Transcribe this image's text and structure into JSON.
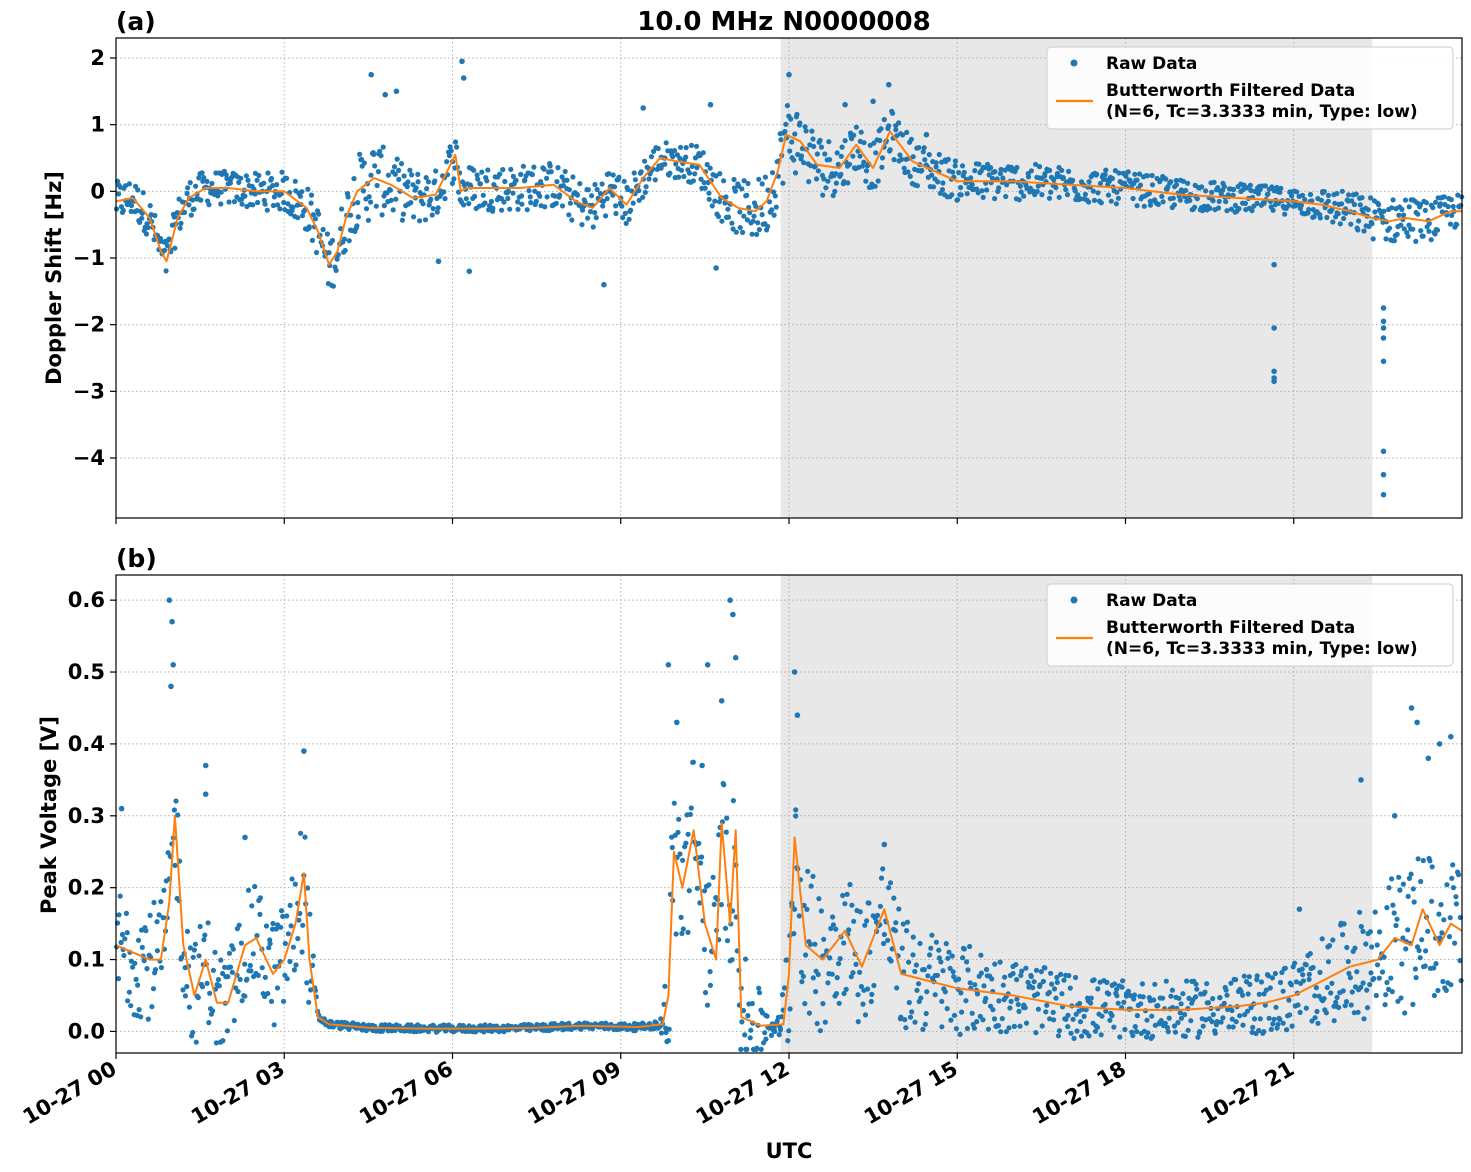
{
  "figure": {
    "title": "10.0 MHz N0000008",
    "xlabel": "UTC",
    "x_tick_labels": [
      "10-27 00",
      "10-27 03",
      "10-27 06",
      "10-27 09",
      "10-27 12",
      "10-27 15",
      "10-27 18",
      "10-27 21"
    ],
    "colors": {
      "raw": "#1f77b4",
      "filtered": "#ff7f0e",
      "shade": "#e8e8e8",
      "grid": "#b0b0b0"
    }
  },
  "chart_data": [
    {
      "type": "scatter",
      "panel_label": "(a)",
      "ylabel": "Doppler Shift [Hz]",
      "xlim_hours": [
        0,
        24
      ],
      "ylim": [
        -4.9,
        2.3
      ],
      "y_ticks": [
        2,
        1,
        0,
        -1,
        -2,
        -3,
        -4
      ],
      "y_tick_labels": [
        "2",
        "1",
        "0",
        "−1",
        "−2",
        "−3",
        "−4"
      ],
      "shaded_range_hours": [
        11.85,
        22.4
      ],
      "grid": true,
      "legend_placement": "upper right",
      "legend": {
        "raw_label": "Raw Data",
        "filtered_line1": "Butterworth Filtered Data",
        "filtered_line2": "(N=6, Tc=3.3333 min, Type: low)"
      },
      "series": [
        {
          "name": "Butterworth Filtered Data",
          "style": "line",
          "x_hours": [
            0,
            0.3,
            0.6,
            0.8,
            0.9,
            1.1,
            1.3,
            1.6,
            2.0,
            2.5,
            3.0,
            3.4,
            3.6,
            3.8,
            3.95,
            4.1,
            4.3,
            4.6,
            4.9,
            5.3,
            5.7,
            6.05,
            6.15,
            6.25,
            6.6,
            7.2,
            7.8,
            8.2,
            8.5,
            8.8,
            9.1,
            9.4,
            9.7,
            10.0,
            10.4,
            10.8,
            11.1,
            11.4,
            11.6,
            11.8,
            11.95,
            12.2,
            12.5,
            12.9,
            13.2,
            13.5,
            13.8,
            14.2,
            15.0,
            16.0,
            17.0,
            18.0,
            19.0,
            20.0,
            21.0,
            21.5,
            22.0,
            22.4,
            22.7,
            23.0,
            23.4,
            23.8,
            24.0
          ],
          "y": [
            -0.15,
            -0.1,
            -0.4,
            -0.9,
            -1.05,
            -0.4,
            -0.1,
            0.05,
            0.05,
            0.0,
            0.0,
            -0.25,
            -0.6,
            -1.1,
            -0.9,
            -0.4,
            0.0,
            0.2,
            0.1,
            -0.1,
            -0.05,
            0.55,
            0.0,
            0.05,
            0.05,
            0.05,
            0.1,
            -0.15,
            -0.25,
            0.05,
            -0.2,
            0.2,
            0.5,
            0.45,
            0.4,
            -0.1,
            -0.25,
            -0.3,
            -0.15,
            0.3,
            0.85,
            0.75,
            0.4,
            0.35,
            0.7,
            0.35,
            0.9,
            0.45,
            0.15,
            0.15,
            0.1,
            0.05,
            -0.05,
            -0.1,
            -0.15,
            -0.2,
            -0.3,
            -0.4,
            -0.45,
            -0.4,
            -0.45,
            -0.3,
            -0.3
          ]
        },
        {
          "name": "Raw Data",
          "style": "points",
          "noise_band_x_hours": [
            0,
            1,
            2,
            3,
            4,
            4.5,
            5,
            6,
            7,
            8,
            9,
            10,
            11,
            12,
            13,
            14,
            15,
            18,
            21,
            22,
            23,
            24
          ],
          "noise_band_halfwidth": [
            0.3,
            0.3,
            0.25,
            0.3,
            0.45,
            0.6,
            0.45,
            0.35,
            0.35,
            0.35,
            0.35,
            0.25,
            0.4,
            0.55,
            0.4,
            0.35,
            0.3,
            0.25,
            0.2,
            0.3,
            0.35,
            0.25
          ],
          "spikes": [
            {
              "x_hours": 4.55,
              "y": 1.75
            },
            {
              "x_hours": 4.8,
              "y": 1.45
            },
            {
              "x_hours": 5.0,
              "y": 1.5
            },
            {
              "x_hours": 6.17,
              "y": 1.95
            },
            {
              "x_hours": 6.2,
              "y": 1.7
            },
            {
              "x_hours": 6.3,
              "y": -1.2
            },
            {
              "x_hours": 5.75,
              "y": -1.05
            },
            {
              "x_hours": 8.7,
              "y": -1.4
            },
            {
              "x_hours": 9.4,
              "y": 1.25
            },
            {
              "x_hours": 10.6,
              "y": 1.3
            },
            {
              "x_hours": 10.7,
              "y": -1.15
            },
            {
              "x_hours": 12.0,
              "y": 1.75
            },
            {
              "x_hours": 13.0,
              "y": 1.3
            },
            {
              "x_hours": 13.5,
              "y": 1.35
            },
            {
              "x_hours": 13.78,
              "y": 1.6
            },
            {
              "x_hours": 14.45,
              "y": 0.85
            },
            {
              "x_hours": 20.65,
              "y": -1.1
            },
            {
              "x_hours": 20.65,
              "y": -2.05
            },
            {
              "x_hours": 20.65,
              "y": -2.7
            },
            {
              "x_hours": 20.65,
              "y": -2.8
            },
            {
              "x_hours": 20.65,
              "y": -2.85
            },
            {
              "x_hours": 22.6,
              "y": -1.75
            },
            {
              "x_hours": 22.6,
              "y": -1.95
            },
            {
              "x_hours": 22.6,
              "y": -2.05
            },
            {
              "x_hours": 22.6,
              "y": -2.2
            },
            {
              "x_hours": 22.6,
              "y": -2.55
            },
            {
              "x_hours": 22.6,
              "y": -3.9
            },
            {
              "x_hours": 22.6,
              "y": -4.25
            },
            {
              "x_hours": 22.6,
              "y": -4.55
            }
          ]
        }
      ]
    },
    {
      "type": "scatter",
      "panel_label": "(b)",
      "ylabel": "Peak Voltage [V]",
      "xlim_hours": [
        0,
        24
      ],
      "ylim": [
        -0.03,
        0.635
      ],
      "y_ticks": [
        0.6,
        0.5,
        0.4,
        0.3,
        0.2,
        0.1,
        0.0
      ],
      "y_tick_labels": [
        "0.6",
        "0.5",
        "0.4",
        "0.3",
        "0.2",
        "0.1",
        "0.0"
      ],
      "shaded_range_hours": [
        11.85,
        22.4
      ],
      "grid": true,
      "legend_placement": "upper right",
      "legend": {
        "raw_label": "Raw Data",
        "filtered_line1": "Butterworth Filtered Data",
        "filtered_line2": "(N=6, Tc=3.3333 min, Type: low)"
      },
      "series": [
        {
          "name": "Butterworth Filtered Data",
          "style": "line",
          "x_hours": [
            0,
            0.3,
            0.6,
            0.8,
            0.95,
            1.05,
            1.2,
            1.4,
            1.6,
            1.8,
            2.0,
            2.3,
            2.5,
            2.8,
            3.0,
            3.2,
            3.35,
            3.45,
            3.6,
            3.8,
            4.5,
            5.5,
            6.5,
            7.5,
            8.3,
            8.8,
            9.3,
            9.75,
            9.85,
            9.95,
            10.1,
            10.3,
            10.5,
            10.7,
            10.8,
            10.95,
            11.05,
            11.15,
            11.5,
            11.9,
            12.0,
            12.1,
            12.3,
            12.6,
            13.0,
            13.3,
            13.7,
            14.0,
            14.5,
            15.0,
            16.0,
            17.0,
            18.0,
            19.0,
            20.0,
            20.5,
            21.0,
            21.5,
            22.0,
            22.5,
            22.8,
            23.1,
            23.3,
            23.6,
            23.8,
            24.0
          ],
          "y": [
            0.12,
            0.11,
            0.1,
            0.1,
            0.18,
            0.3,
            0.12,
            0.05,
            0.1,
            0.04,
            0.04,
            0.12,
            0.13,
            0.08,
            0.1,
            0.15,
            0.22,
            0.1,
            0.02,
            0.01,
            0.005,
            0.004,
            0.004,
            0.005,
            0.008,
            0.007,
            0.006,
            0.01,
            0.05,
            0.25,
            0.2,
            0.28,
            0.15,
            0.1,
            0.29,
            0.15,
            0.28,
            0.02,
            0.008,
            0.01,
            0.08,
            0.27,
            0.12,
            0.1,
            0.14,
            0.09,
            0.17,
            0.08,
            0.07,
            0.06,
            0.05,
            0.035,
            0.03,
            0.03,
            0.035,
            0.04,
            0.05,
            0.07,
            0.09,
            0.1,
            0.13,
            0.12,
            0.17,
            0.12,
            0.15,
            0.14
          ]
        },
        {
          "name": "Raw Data",
          "style": "points",
          "noise_band_x_hours": [
            0,
            1,
            2,
            3,
            3.4,
            3.6,
            9.7,
            9.9,
            11.1,
            11.8,
            12.0,
            13,
            14,
            16,
            18,
            20,
            21,
            22,
            23,
            24
          ],
          "noise_band_halfwidth": [
            0.09,
            0.08,
            0.07,
            0.08,
            0.1,
            0.005,
            0.005,
            0.12,
            0.1,
            0.005,
            0.12,
            0.09,
            0.08,
            0.05,
            0.04,
            0.04,
            0.05,
            0.07,
            0.1,
            0.09
          ],
          "spikes": [
            {
              "x_hours": 0.1,
              "y": 0.31
            },
            {
              "x_hours": 0.95,
              "y": 0.6
            },
            {
              "x_hours": 1.0,
              "y": 0.57
            },
            {
              "x_hours": 1.02,
              "y": 0.51
            },
            {
              "x_hours": 0.98,
              "y": 0.48
            },
            {
              "x_hours": 1.6,
              "y": 0.37
            },
            {
              "x_hours": 1.6,
              "y": 0.33
            },
            {
              "x_hours": 2.3,
              "y": 0.27
            },
            {
              "x_hours": 3.35,
              "y": 0.39
            },
            {
              "x_hours": 9.85,
              "y": 0.51
            },
            {
              "x_hours": 10.0,
              "y": 0.43
            },
            {
              "x_hours": 10.45,
              "y": 0.37
            },
            {
              "x_hours": 10.55,
              "y": 0.51
            },
            {
              "x_hours": 10.8,
              "y": 0.46
            },
            {
              "x_hours": 10.95,
              "y": 0.6
            },
            {
              "x_hours": 11.0,
              "y": 0.58
            },
            {
              "x_hours": 11.05,
              "y": 0.52
            },
            {
              "x_hours": 12.1,
              "y": 0.5
            },
            {
              "x_hours": 12.15,
              "y": 0.44
            },
            {
              "x_hours": 13.7,
              "y": 0.26
            },
            {
              "x_hours": 21.1,
              "y": 0.17
            },
            {
              "x_hours": 22.2,
              "y": 0.35
            },
            {
              "x_hours": 22.8,
              "y": 0.3
            },
            {
              "x_hours": 23.1,
              "y": 0.45
            },
            {
              "x_hours": 23.2,
              "y": 0.43
            },
            {
              "x_hours": 23.4,
              "y": 0.38
            },
            {
              "x_hours": 23.6,
              "y": 0.4
            },
            {
              "x_hours": 23.8,
              "y": 0.41
            }
          ]
        }
      ]
    }
  ]
}
